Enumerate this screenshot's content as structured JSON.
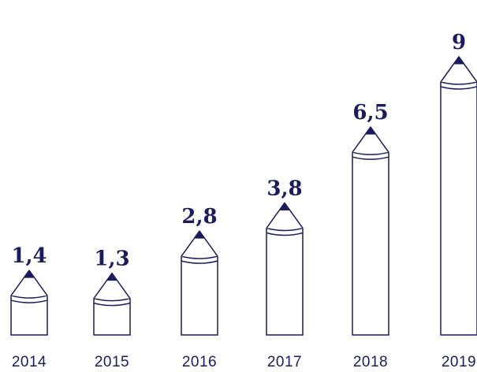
{
  "chart_data": {
    "type": "bar",
    "categories": [
      "2014",
      "2015",
      "2016",
      "2017",
      "2018",
      "2019"
    ],
    "values": [
      1.4,
      1.3,
      2.8,
      3.8,
      6.5,
      9
    ],
    "value_labels": [
      "1,4",
      "1,3",
      "2,8",
      "3,8",
      "6,5",
      "9"
    ],
    "title": "",
    "xlabel": "",
    "ylabel": "",
    "ylim": [
      0,
      9
    ],
    "grid": false,
    "legend": "none",
    "colors": {
      "stroke": "#1d1a5e",
      "tip": "#1d1a5e",
      "label": "#1d1a5e",
      "axis_text": "#1d1a5e"
    }
  }
}
